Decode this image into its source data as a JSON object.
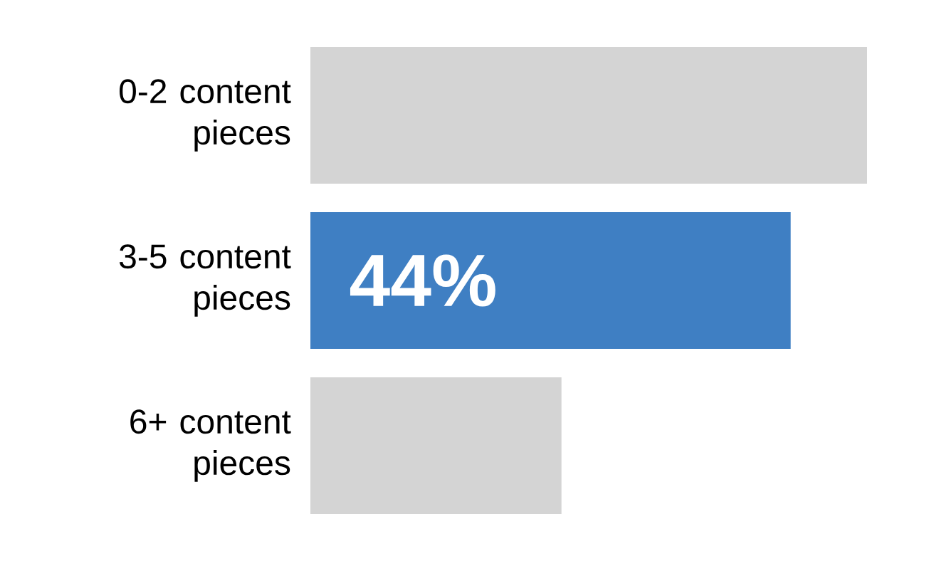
{
  "chart_data": {
    "type": "bar",
    "orientation": "horizontal",
    "categories": [
      "0-2 content pieces",
      "3-5 content pieces",
      "6+ content pieces"
    ],
    "values": [
      51,
      44,
      23
    ],
    "colors": [
      "#d4d4d4",
      "#3f7fc3",
      "#d4d4d4"
    ],
    "value_labels": [
      null,
      "44%",
      null
    ]
  }
}
